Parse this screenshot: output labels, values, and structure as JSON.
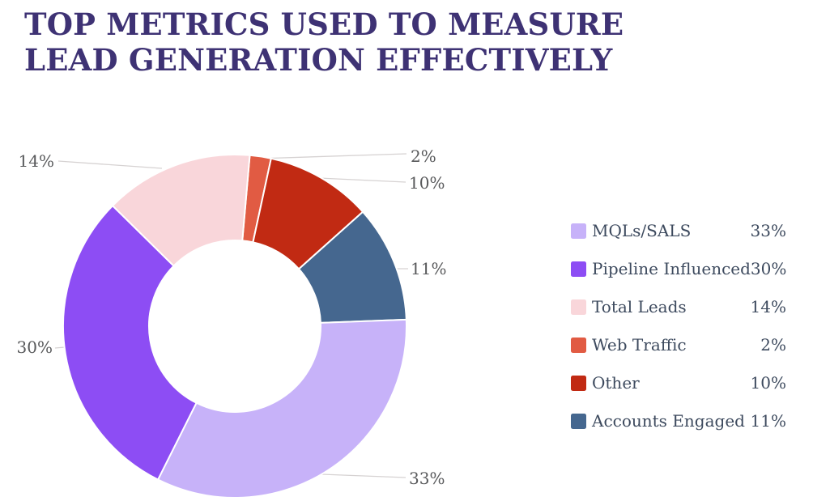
{
  "title": {
    "line1": "TOP METRICS USED TO MEASURE",
    "line2": "LEAD GENERATION EFFECTIVELY"
  },
  "colors": {
    "title_text": "#3e3274",
    "legend_text": "#3d4a5e",
    "callout_text": "#58595b",
    "leader_line": "#d6d2d2",
    "background": "#ffffff"
  },
  "chart_data": {
    "type": "pie",
    "subtype": "donut",
    "title": "TOP METRICS USED TO MEASURE LEAD GENERATION EFFECTIVELY",
    "legend_position": "right",
    "rotation_deg": 5,
    "draw_start_index": 3,
    "inner_radius_ratio": 0.5,
    "slice_gap_stroke": "#ffffff",
    "series": [
      {
        "label": "MQLs/SALS",
        "value": 33,
        "pct_label": "33%",
        "color": "#c7b2f9"
      },
      {
        "label": "Pipeline Influenced",
        "value": 30,
        "pct_label": "30%",
        "color": "#8d4df4"
      },
      {
        "label": "Total Leads",
        "value": 14,
        "pct_label": "14%",
        "color": "#f9d6da"
      },
      {
        "label": "Web Traffic",
        "value": 2,
        "pct_label": "2%",
        "color": "#e15b43"
      },
      {
        "label": "Other",
        "value": 10,
        "pct_label": "10%",
        "color": "#c12a13"
      },
      {
        "label": "Accounts Engaged",
        "value": 11,
        "pct_label": "11%",
        "color": "#45678f"
      }
    ]
  }
}
